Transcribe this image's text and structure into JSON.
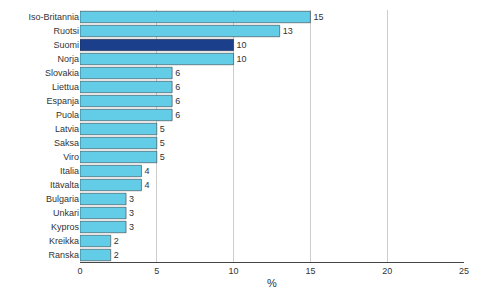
{
  "chart_data": {
    "type": "bar",
    "orientation": "horizontal",
    "categories": [
      "Iso-Britannia",
      "Ruotsi",
      "Suomi",
      "Norja",
      "Slovakia",
      "Liettua",
      "Espanja",
      "Puola",
      "Latvia",
      "Saksa",
      "Viro",
      "Italia",
      "Itävalta",
      "Bulgaria",
      "Unkari",
      "Kypros",
      "Kreikka",
      "Ranska"
    ],
    "values": [
      15,
      13,
      10,
      10,
      6,
      6,
      6,
      6,
      5,
      5,
      5,
      4,
      4,
      3,
      3,
      3,
      2,
      2
    ],
    "colors": [
      "#63cde8",
      "#63cde8",
      "#1c3f8c",
      "#63cde8",
      "#63cde8",
      "#63cde8",
      "#63cde8",
      "#63cde8",
      "#63cde8",
      "#63cde8",
      "#63cde8",
      "#63cde8",
      "#63cde8",
      "#63cde8",
      "#63cde8",
      "#63cde8",
      "#63cde8",
      "#63cde8"
    ],
    "xlabel": "%",
    "xlim": [
      0,
      25
    ],
    "xticks": [
      0,
      5,
      10,
      15,
      20,
      25
    ],
    "grid": true,
    "data_labels": true
  }
}
